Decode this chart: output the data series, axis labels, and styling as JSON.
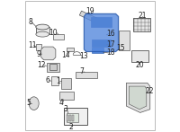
{
  "background_color": "#ffffff",
  "border_color": "#bbbbbb",
  "fig_width": 2.0,
  "fig_height": 1.47,
  "dpi": 100,
  "highlighted_color": "#5588dd",
  "highlighted_edge": "#2255aa",
  "part_label_fontsize": 5.5,
  "line_color": "#555555",
  "line_width": 0.5,
  "part_fill": "#e8e8e8",
  "part_fill2": "#d8d8d8",
  "part_fill3": "#e0e0e0"
}
